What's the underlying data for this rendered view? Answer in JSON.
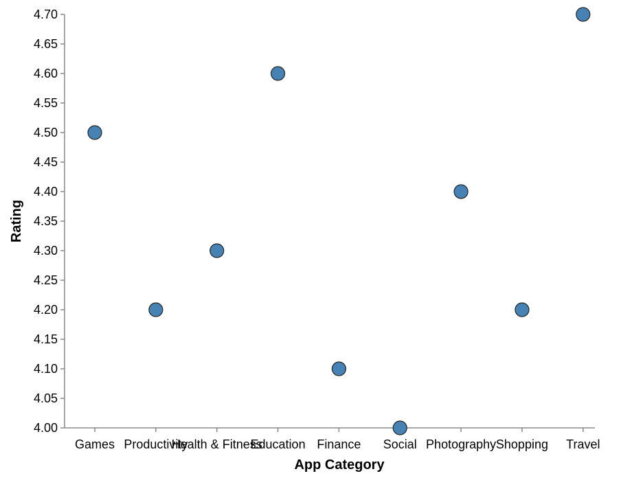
{
  "chart_data": {
    "type": "scatter",
    "xlabel": "App Category",
    "ylabel": "Rating",
    "categories": [
      "Games",
      "Productivity",
      "Health & Fitness",
      "Education",
      "Finance",
      "Social",
      "Photography",
      "Shopping",
      "Travel"
    ],
    "series": [
      {
        "values": [
          4.5,
          4.2,
          4.3,
          4.6,
          4.1,
          4.0,
          4.4,
          4.2,
          4.7
        ]
      }
    ],
    "ylim": [
      4.0,
      4.7
    ],
    "yticks": [
      "4.00",
      "4.05",
      "4.10",
      "4.15",
      "4.20",
      "4.25",
      "4.30",
      "4.35",
      "4.40",
      "4.45",
      "4.50",
      "4.55",
      "4.60",
      "4.65",
      "4.70"
    ],
    "grid": false,
    "point_color": "#4682b4"
  }
}
